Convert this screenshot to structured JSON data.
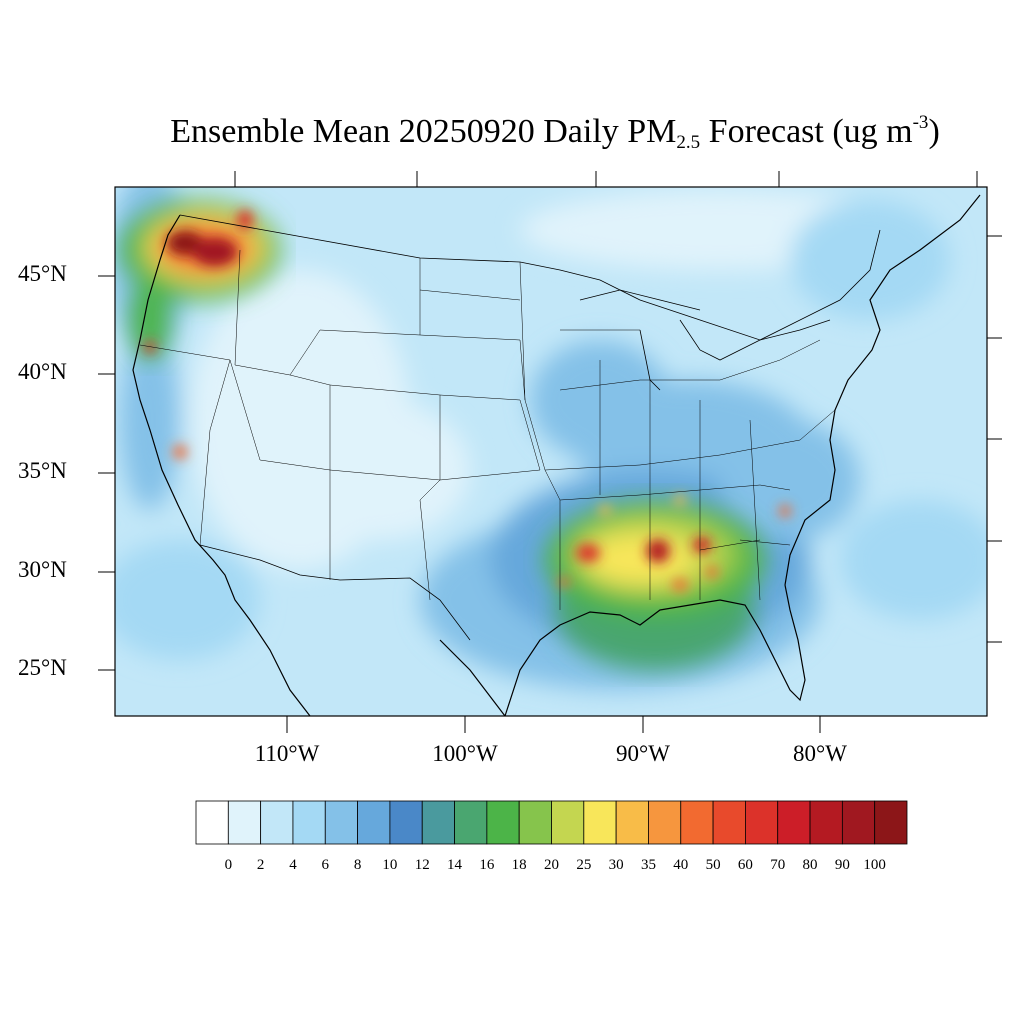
{
  "title": {
    "prefix": "Ensemble Mean 20250920 Daily PM",
    "subscript": "2.5",
    "middle": " Forecast (ug m",
    "superscript": "-3",
    "suffix": ")"
  },
  "lat_labels": [
    "45°N",
    "40°N",
    "35°N",
    "30°N",
    "25°N"
  ],
  "lon_labels": [
    "110°W",
    "100°W",
    "90°W",
    "80°W"
  ],
  "colorbar": {
    "labels": [
      "0",
      "2",
      "4",
      "6",
      "8",
      "10",
      "12",
      "14",
      "16",
      "18",
      "20",
      "25",
      "30",
      "35",
      "40",
      "50",
      "60",
      "70",
      "80",
      "90",
      "100"
    ],
    "colors": [
      "#ffffff",
      "#e0f3fb",
      "#c2e7f8",
      "#a4d9f4",
      "#84c1e8",
      "#66a8dc",
      "#4a88c8",
      "#4a9a9e",
      "#4aa670",
      "#4cb448",
      "#86c44c",
      "#c4d650",
      "#f8e65a",
      "#f8bc48",
      "#f6963e",
      "#f26a30",
      "#e84a2c",
      "#dc322a",
      "#cc1e28",
      "#b41a22",
      "#a01820",
      "#8c1618"
    ]
  },
  "field": {
    "background_level": 2,
    "hotspots": [
      {
        "name": "pacific-northwest",
        "lon": -115.8,
        "lat": 46.3,
        "peak_level": 21
      },
      {
        "name": "north-idaho",
        "lon": -112.8,
        "lat": 47.0,
        "peak_level": 16
      },
      {
        "name": "oregon",
        "lon": -122.3,
        "lat": 43.8,
        "peak_level": 14
      },
      {
        "name": "northern-california",
        "lon": -122.2,
        "lat": 41.3,
        "peak_level": 17
      },
      {
        "name": "central-california",
        "lon": -119.1,
        "lat": 36.2,
        "peak_level": 15
      },
      {
        "name": "louisiana",
        "lon": -92.4,
        "lat": 31.1,
        "peak_level": 17
      },
      {
        "name": "mississippi",
        "lon": -89.1,
        "lat": 31.2,
        "peak_level": 18
      },
      {
        "name": "alabama",
        "lon": -86.6,
        "lat": 31.4,
        "peak_level": 17
      },
      {
        "name": "south-carolina",
        "lon": -81.7,
        "lat": 33.2,
        "peak_level": 15
      },
      {
        "name": "gulf-plume",
        "lon": -89.2,
        "lat": 28.3,
        "peak_level": 10
      }
    ]
  }
}
